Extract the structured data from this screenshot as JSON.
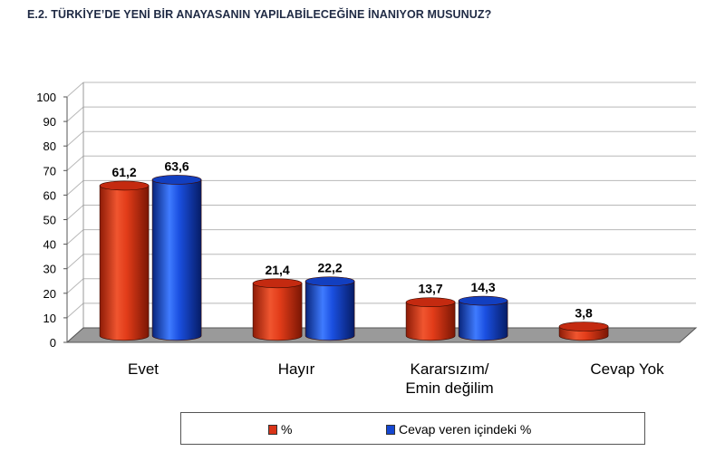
{
  "title": "E.2. TÜRKİYE’DE YENİ BİR ANAYASANIN YAPILABİLECEĞİNE İNANIYOR MUSUNUZ?",
  "colors": {
    "red": "#d93418",
    "blue": "#1547d1",
    "floor": "#9a9a9a",
    "grid": "#b8b8b8"
  },
  "chart_data": {
    "type": "bar",
    "categories": [
      "Evet",
      "Hayır",
      "Kararsızım/\nEmin değilim",
      "Cevap Yok"
    ],
    "series": [
      {
        "name": "%",
        "color": "#d93418",
        "values": [
          61.2,
          21.4,
          13.7,
          3.8
        ],
        "labels": [
          "61,2",
          "21,4",
          "13,7",
          "3,8"
        ]
      },
      {
        "name": "Cevap veren içindeki %",
        "color": "#1547d1",
        "values": [
          63.6,
          22.2,
          14.3,
          null
        ],
        "labels": [
          "63,6",
          "22,2",
          "14,3",
          ""
        ]
      }
    ],
    "ylim": [
      0,
      100
    ],
    "yticks": [
      "0",
      "10",
      "20",
      "30",
      "40",
      "50",
      "60",
      "70",
      "80",
      "90",
      "100"
    ],
    "grid": true,
    "legend_position": "bottom",
    "style": "3d-cylinder"
  }
}
